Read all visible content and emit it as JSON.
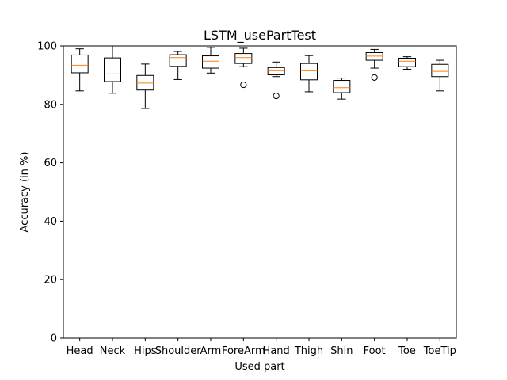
{
  "chart_data": {
    "type": "box",
    "title": "LSTM_usePartTest",
    "xlabel": "Used part",
    "ylabel": "Accuracy (in %)",
    "ylim": [
      0,
      100
    ],
    "yticks": [
      0,
      20,
      40,
      60,
      80,
      100
    ],
    "grid": false,
    "colors": {
      "box": "#000000",
      "median": "#ff7f0e",
      "background": "#ffffff"
    },
    "categories": [
      "Head",
      "Neck",
      "Hips",
      "Shoulder",
      "Arm",
      "ForeArm",
      "Hand",
      "Thigh",
      "Shin",
      "Foot",
      "Toe",
      "ToeTip"
    ],
    "boxes": [
      {
        "category": "Head",
        "whisker_low": 84.6,
        "q1": 90.8,
        "median": 93.4,
        "q3": 96.9,
        "whisker_high": 99.0,
        "outliers": []
      },
      {
        "category": "Neck",
        "whisker_low": 83.8,
        "q1": 87.8,
        "median": 90.4,
        "q3": 95.9,
        "whisker_high": 100.0,
        "outliers": []
      },
      {
        "category": "Hips",
        "whisker_low": 78.6,
        "q1": 84.9,
        "median": 87.3,
        "q3": 89.9,
        "whisker_high": 93.8,
        "outliers": []
      },
      {
        "category": "Shoulder",
        "whisker_low": 88.5,
        "q1": 93.0,
        "median": 96.0,
        "q3": 97.0,
        "whisker_high": 98.1,
        "outliers": []
      },
      {
        "category": "Arm",
        "whisker_low": 90.7,
        "q1": 92.4,
        "median": 94.8,
        "q3": 96.6,
        "whisker_high": 99.5,
        "outliers": []
      },
      {
        "category": "ForeArm",
        "whisker_low": 92.9,
        "q1": 94.0,
        "median": 96.0,
        "q3": 97.4,
        "whisker_high": 99.2,
        "outliers": [
          86.7
        ]
      },
      {
        "category": "Hand",
        "whisker_low": 89.5,
        "q1": 90.1,
        "median": 91.5,
        "q3": 92.6,
        "whisker_high": 94.5,
        "outliers": [
          82.9
        ]
      },
      {
        "category": "Thigh",
        "whisker_low": 84.3,
        "q1": 88.4,
        "median": 91.5,
        "q3": 94.0,
        "whisker_high": 96.7,
        "outliers": []
      },
      {
        "category": "Shin",
        "whisker_low": 81.8,
        "q1": 84.0,
        "median": 85.7,
        "q3": 88.2,
        "whisker_high": 89.0,
        "outliers": []
      },
      {
        "category": "Foot",
        "whisker_low": 92.4,
        "q1": 95.1,
        "median": 96.5,
        "q3": 97.7,
        "whisker_high": 98.8,
        "outliers": [
          89.2
        ]
      },
      {
        "category": "Toe",
        "whisker_low": 92.0,
        "q1": 92.9,
        "median": 94.8,
        "q3": 95.8,
        "whisker_high": 96.3,
        "outliers": []
      },
      {
        "category": "ToeTip",
        "whisker_low": 84.6,
        "q1": 89.5,
        "median": 91.3,
        "q3": 93.7,
        "whisker_high": 95.1,
        "outliers": []
      }
    ]
  }
}
